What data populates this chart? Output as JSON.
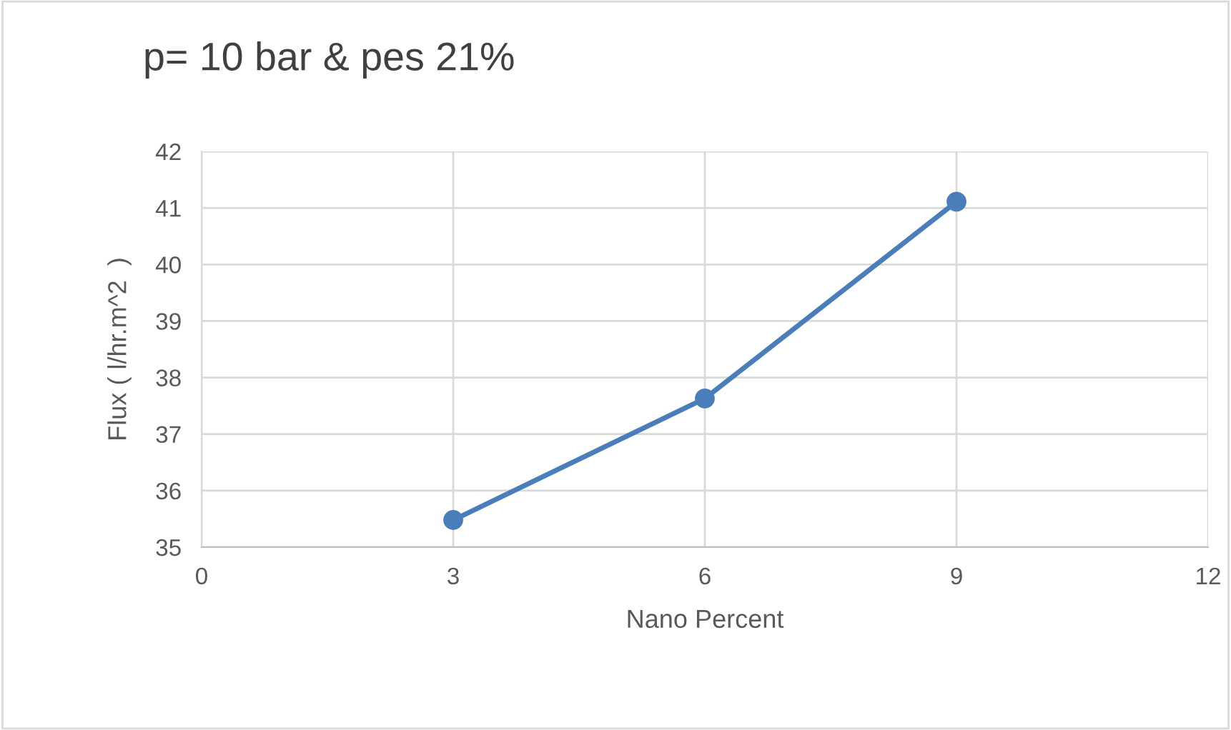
{
  "chart_data": {
    "type": "line",
    "title": "p= 10 bar & pes 21%",
    "xlabel": "Nano Percent",
    "ylabel": "Flux ( l/hr.m^2  )",
    "x": [
      3,
      6,
      9
    ],
    "series": [
      {
        "color": "#4a7ebb",
        "values": [
          35.48,
          37.63,
          41.11
        ]
      }
    ],
    "xlim": [
      0,
      12
    ],
    "xticks": [
      0,
      3,
      6,
      9,
      12
    ],
    "ylim": [
      35,
      42
    ],
    "yticks": [
      35,
      36,
      37,
      38,
      39,
      40,
      41,
      42
    ],
    "grid": true,
    "marker": "circle",
    "line_style": "solid",
    "legend": false
  }
}
